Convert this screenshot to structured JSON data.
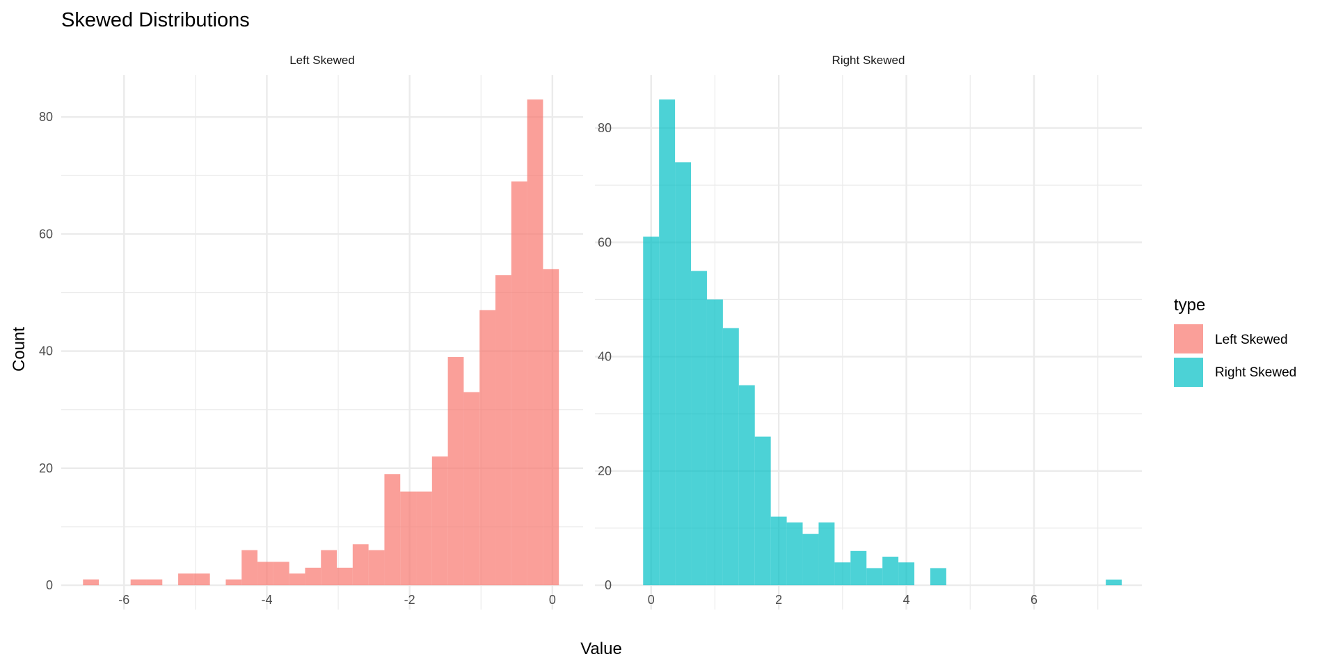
{
  "chart_data": {
    "type": "bar",
    "title": "Skewed Distributions",
    "xlabel": "Value",
    "ylabel": "Count",
    "grid": true,
    "legend": {
      "title": "type",
      "placement": "right",
      "entries": [
        {
          "label": "Left Skewed",
          "color": "#F8766D"
        },
        {
          "label": "Right Skewed",
          "color": "#00BFC4"
        }
      ]
    },
    "panels": [
      {
        "strip": "Left Skewed",
        "color": "#F8766D",
        "alpha": 0.7,
        "bin_width": 0.2222,
        "bin_centers_start": -6.464,
        "counts": [
          1,
          0,
          0,
          1,
          1,
          0,
          2,
          2,
          0,
          1,
          6,
          4,
          4,
          2,
          3,
          6,
          3,
          7,
          6,
          19,
          16,
          16,
          22,
          39,
          33,
          47,
          53,
          69,
          83,
          54
        ],
        "xlim": [
          -6.88,
          0.43
        ],
        "ylim": [
          -4.15,
          87.15
        ],
        "xticks": [
          -6,
          -4,
          -2,
          0
        ],
        "xticks_minor": [
          -5,
          -3,
          -1
        ],
        "xtick_labels": [
          "-6",
          "-4",
          "-2",
          "0"
        ],
        "yticks": [
          0,
          20,
          40,
          60,
          80
        ],
        "yticks_minor": [
          10,
          30,
          50,
          70
        ],
        "ytick_labels": [
          "0",
          "20",
          "40",
          "60",
          "80"
        ]
      },
      {
        "strip": "Right Skewed",
        "color": "#00BFC4",
        "alpha": 0.7,
        "bin_width": 0.25,
        "bin_centers_start": 0,
        "counts": [
          61,
          85,
          74,
          55,
          50,
          45,
          35,
          26,
          12,
          11,
          9,
          11,
          4,
          6,
          3,
          5,
          4,
          0,
          3,
          0,
          0,
          0,
          0,
          0,
          0,
          0,
          0,
          0,
          0,
          1
        ],
        "xlim": [
          -0.88,
          7.69
        ],
        "ylim": [
          -4.25,
          89.25
        ],
        "xticks": [
          0,
          2,
          4,
          6
        ],
        "xticks_minor": [
          1,
          3,
          5,
          7
        ],
        "xtick_labels": [
          "0",
          "2",
          "4",
          "6"
        ],
        "yticks": [
          0,
          20,
          40,
          60,
          80
        ],
        "yticks_minor": [
          10,
          30,
          50,
          70
        ],
        "ytick_labels": [
          "0",
          "20",
          "40",
          "60",
          "80"
        ]
      }
    ]
  }
}
